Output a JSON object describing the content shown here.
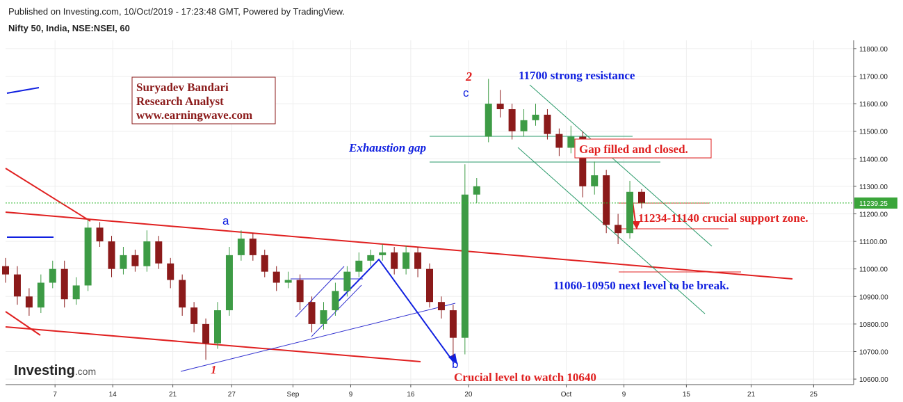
{
  "header": {
    "published": "Published on Investing.com, 10/Oct/2019 - 17:23:48 GMT, Powered by TradingView.",
    "symbol": "Nifty 50, India, NSE:NSEI, 60"
  },
  "logo": {
    "name": "Investing",
    "suffix": ".com"
  },
  "chart_data": {
    "type": "candlestick",
    "x": [
      0,
      1,
      2,
      3,
      4,
      5,
      6,
      7,
      8,
      9,
      10,
      11,
      12,
      13,
      14,
      15,
      16,
      17,
      18,
      19,
      20,
      21,
      22,
      23,
      24,
      25,
      26,
      27,
      28,
      29,
      30,
      31,
      32,
      33,
      34,
      35,
      36,
      37,
      38,
      39,
      40,
      41,
      42,
      43,
      44,
      45,
      46,
      47,
      48,
      49,
      50,
      51,
      52,
      53,
      54
    ],
    "open": [
      11010,
      10980,
      10900,
      10860,
      10950,
      11000,
      10890,
      10940,
      11150,
      11100,
      11000,
      11050,
      11010,
      11100,
      11020,
      10960,
      10860,
      10800,
      10730,
      10850,
      11050,
      11110,
      11050,
      10990,
      10950,
      10960,
      10880,
      10800,
      10850,
      10920,
      10990,
      11030,
      11050,
      11060,
      11000,
      11060,
      11000,
      10880,
      10850,
      10750,
      11270,
      11480,
      11600,
      11580,
      11500,
      11540,
      11560,
      11490,
      11440,
      11480,
      11300,
      11340,
      11160,
      11130,
      11280
    ],
    "high": [
      11040,
      11010,
      10930,
      10980,
      11030,
      11030,
      10970,
      11180,
      11170,
      11120,
      11080,
      11070,
      11140,
      11120,
      11040,
      10980,
      10880,
      10820,
      10880,
      11080,
      11140,
      11130,
      11070,
      11010,
      10990,
      10980,
      10900,
      10880,
      10950,
      11010,
      11060,
      11070,
      11090,
      11080,
      11085,
      11080,
      11020,
      10900,
      10870,
      11380,
      11330,
      11690,
      11650,
      11600,
      11580,
      11600,
      11580,
      11510,
      11520,
      11500,
      11390,
      11360,
      11200,
      11320,
      11290
    ],
    "low": [
      10950,
      10870,
      10830,
      10840,
      10930,
      10860,
      10870,
      10920,
      11080,
      10970,
      10980,
      10990,
      10990,
      11000,
      10930,
      10830,
      10770,
      10670,
      10710,
      10830,
      11030,
      11030,
      10970,
      10920,
      10930,
      10850,
      10770,
      10780,
      10830,
      10900,
      10970,
      11010,
      11030,
      10980,
      10980,
      10970,
      10860,
      10820,
      10680,
      10690,
      11240,
      11460,
      11550,
      11470,
      11480,
      11520,
      11470,
      11410,
      11420,
      11260,
      11270,
      11130,
      11090,
      11110,
      11220
    ],
    "close": [
      10980,
      10900,
      10860,
      10950,
      11000,
      10890,
      10940,
      11150,
      11100,
      11000,
      11050,
      11010,
      11100,
      11020,
      10960,
      10860,
      10800,
      10730,
      10850,
      11050,
      11110,
      11050,
      10990,
      10950,
      10960,
      10880,
      10800,
      10850,
      10920,
      10990,
      11030,
      11050,
      11060,
      11000,
      11060,
      11000,
      10880,
      10850,
      10750,
      11270,
      11300,
      11600,
      11580,
      11500,
      11540,
      11560,
      11490,
      11440,
      11480,
      11300,
      11340,
      11160,
      11130,
      11280,
      11239.25
    ],
    "up_color": "#3d9b45",
    "down_color": "#8b1a1a",
    "last_value": 11239.25,
    "xlim": [
      0,
      72
    ],
    "ylim": [
      10580,
      11830
    ],
    "yticks": [
      {
        "value": 10600,
        "label": "10600.00"
      },
      {
        "value": 10700,
        "label": "10700.00"
      },
      {
        "value": 10800,
        "label": "10800.00"
      },
      {
        "value": 10900,
        "label": "10900.00"
      },
      {
        "value": 11000,
        "label": "11000.00"
      },
      {
        "value": 11100,
        "label": "11100.00"
      },
      {
        "value": 11200,
        "label": "11200.00"
      },
      {
        "value": 11300,
        "label": "11300.00"
      },
      {
        "value": 11400,
        "label": "11400.00"
      },
      {
        "value": 11500,
        "label": "11500.00"
      },
      {
        "value": 11600,
        "label": "11600.00"
      },
      {
        "value": 11700,
        "label": "11700.00"
      },
      {
        "value": 11800,
        "label": "11800.00"
      }
    ],
    "xticks": [
      {
        "value": 4.2,
        "label": "7"
      },
      {
        "value": 9.1,
        "label": "14"
      },
      {
        "value": 14.2,
        "label": "21"
      },
      {
        "value": 19.2,
        "label": "27"
      },
      {
        "value": 24.4,
        "label": "Sep"
      },
      {
        "value": 29.3,
        "label": "9"
      },
      {
        "value": 34.4,
        "label": "16"
      },
      {
        "value": 39.3,
        "label": "20"
      },
      {
        "value": 47.6,
        "label": "Oct"
      },
      {
        "value": 52.5,
        "label": "9"
      },
      {
        "value": 57.8,
        "label": "15"
      },
      {
        "value": 63.3,
        "label": "21"
      },
      {
        "value": 68.6,
        "label": "25"
      }
    ],
    "grid": true,
    "annotations": [
      "2",
      "c",
      "11700 strong resistance",
      "Exhaustion gap",
      "Gap filled and closed.",
      "11234-11140 crucial support zone.",
      "11060-10950 next level to be break.",
      "Crucial level to watch 10640",
      "a",
      "b",
      "1"
    ],
    "analyst_box": [
      "Suryadev Bandari",
      "Research Analyst",
      "www.earningwave.com"
    ]
  }
}
